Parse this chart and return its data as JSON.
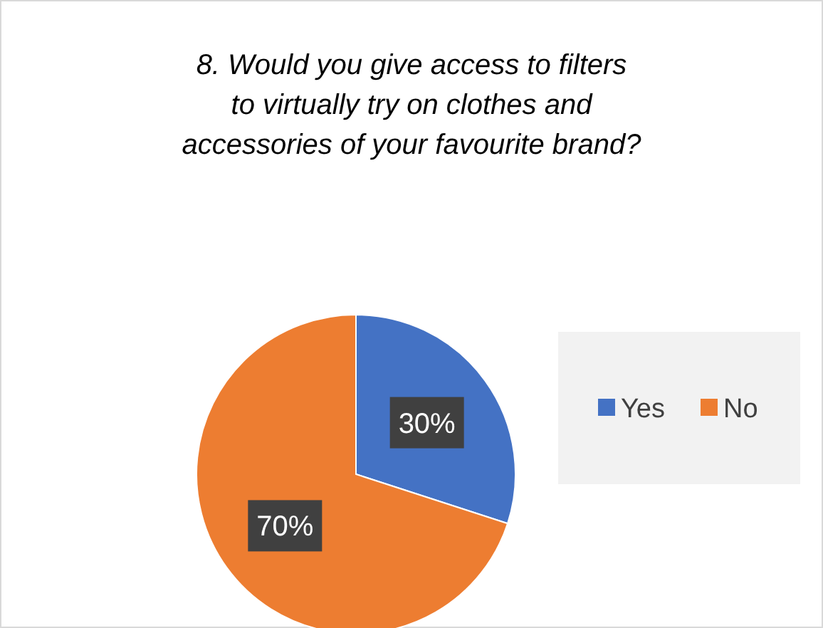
{
  "chart_data": {
    "type": "pie",
    "title": "8. Would you give access to filters to virtually try on clothes and accessories of your favourite brand?",
    "categories": [
      "Yes",
      "No"
    ],
    "values": [
      30,
      70
    ],
    "colors": [
      "#4472c4",
      "#ed7d31"
    ],
    "value_labels": [
      "30%",
      "70%"
    ],
    "legend": "right"
  }
}
